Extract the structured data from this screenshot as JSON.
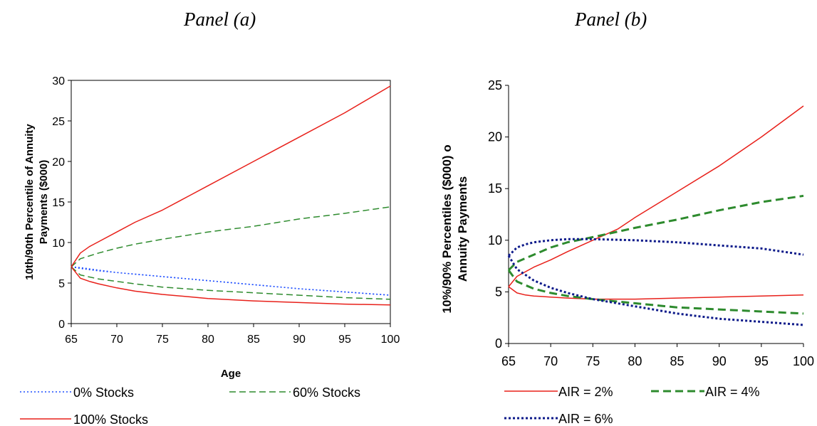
{
  "panels": {
    "a": {
      "title": "Panel (a)"
    },
    "b": {
      "title": "Panel (b)"
    }
  },
  "chart_data": [
    {
      "type": "line",
      "title": "Panel (a)",
      "xlabel": "Age",
      "ylabel": "10th/90th Percentile of Annuity Payments ($000)",
      "ylabel_lines": [
        "10th/90th Percentile of Annuity",
        "Payments ($000)"
      ],
      "xlim": [
        65,
        100
      ],
      "ylim": [
        0,
        30
      ],
      "xticks": [
        65,
        70,
        75,
        80,
        85,
        90,
        95,
        100
      ],
      "yticks": [
        0,
        5,
        10,
        15,
        20,
        25,
        30
      ],
      "grid": false,
      "legend_position": "bottom",
      "series": [
        {
          "name": "0% Stocks",
          "color": "#1f4fff",
          "dash": "dotted",
          "band": "upper",
          "x": [
            65,
            66,
            68,
            70,
            72,
            75,
            80,
            85,
            90,
            95,
            100
          ],
          "y": [
            7.0,
            6.9,
            6.6,
            6.3,
            6.1,
            5.8,
            5.3,
            4.8,
            4.3,
            3.9,
            3.5
          ]
        },
        {
          "name": "0% Stocks",
          "color": "#1f4fff",
          "dash": "dotted",
          "band": "lower",
          "x": [
            65,
            66,
            68,
            70,
            72,
            75,
            80,
            85,
            90,
            95,
            100
          ],
          "y": [
            7.0,
            6.8,
            6.5,
            6.3,
            6.1,
            5.8,
            5.3,
            4.8,
            4.3,
            3.9,
            3.5
          ]
        },
        {
          "name": "60% Stocks",
          "color": "#2e8b2e",
          "dash": "dashed",
          "band": "upper",
          "x": [
            65,
            66,
            68,
            70,
            72,
            75,
            80,
            85,
            90,
            95,
            100
          ],
          "y": [
            7.0,
            8.0,
            8.7,
            9.3,
            9.8,
            10.4,
            11.3,
            12.0,
            12.9,
            13.6,
            14.4
          ]
        },
        {
          "name": "60% Stocks",
          "color": "#2e8b2e",
          "dash": "dashed",
          "band": "lower",
          "x": [
            65,
            66,
            68,
            70,
            72,
            75,
            80,
            85,
            90,
            95,
            100
          ],
          "y": [
            7.0,
            6.0,
            5.5,
            5.2,
            4.9,
            4.5,
            4.1,
            3.8,
            3.5,
            3.2,
            3.0
          ]
        },
        {
          "name": "100% Stocks",
          "color": "#e8201a",
          "dash": "solid",
          "band": "upper",
          "x": [
            65,
            66,
            67,
            68,
            70,
            72,
            75,
            78,
            80,
            85,
            90,
            95,
            100
          ],
          "y": [
            7.0,
            8.7,
            9.5,
            10.1,
            11.3,
            12.5,
            14.0,
            15.8,
            17.0,
            20.0,
            23.0,
            26.0,
            29.3
          ]
        },
        {
          "name": "100% Stocks",
          "color": "#e8201a",
          "dash": "solid",
          "band": "lower",
          "x": [
            65,
            66,
            67,
            68,
            70,
            72,
            75,
            78,
            80,
            85,
            90,
            95,
            100
          ],
          "y": [
            7.0,
            5.6,
            5.2,
            4.9,
            4.4,
            4.0,
            3.6,
            3.3,
            3.1,
            2.8,
            2.6,
            2.4,
            2.3
          ]
        }
      ]
    },
    {
      "type": "line",
      "title": "Panel (b)",
      "xlabel": "",
      "ylabel": "10%/90% Percentiles ($000) of Annuity Payments",
      "ylabel_lines": [
        "10%/90% Percentiles ($000) o",
        "Annuity Payments"
      ],
      "xlim": [
        65,
        100
      ],
      "ylim": [
        0,
        25
      ],
      "xticks": [
        65,
        70,
        75,
        80,
        85,
        90,
        95,
        100
      ],
      "yticks": [
        0,
        5,
        10,
        15,
        20,
        25
      ],
      "grid": false,
      "legend_position": "bottom",
      "series": [
        {
          "name": "AIR = 2%",
          "color": "#e8201a",
          "dash": "solid",
          "band": "upper",
          "x": [
            65,
            66,
            68,
            70,
            72,
            75,
            78,
            80,
            85,
            90,
            95,
            100
          ],
          "y": [
            5.5,
            6.5,
            7.4,
            8.1,
            8.9,
            10.0,
            11.1,
            12.2,
            14.7,
            17.2,
            20.0,
            23.0
          ]
        },
        {
          "name": "AIR = 2%",
          "color": "#e8201a",
          "dash": "solid",
          "band": "lower",
          "x": [
            65,
            66,
            67,
            68,
            70,
            72,
            75,
            80,
            85,
            90,
            95,
            100
          ],
          "y": [
            5.5,
            4.9,
            4.7,
            4.6,
            4.5,
            4.4,
            4.3,
            4.3,
            4.4,
            4.5,
            4.6,
            4.7
          ]
        },
        {
          "name": "AIR = 4%",
          "color": "#2e8b2e",
          "dash": "dashed",
          "band": "upper",
          "x": [
            65,
            66,
            68,
            70,
            72,
            75,
            80,
            85,
            90,
            95,
            100
          ],
          "y": [
            7.1,
            7.9,
            8.6,
            9.3,
            9.8,
            10.3,
            11.2,
            12.0,
            12.9,
            13.7,
            14.3
          ]
        },
        {
          "name": "AIR = 4%",
          "color": "#2e8b2e",
          "dash": "dashed",
          "band": "lower",
          "x": [
            65,
            66,
            68,
            70,
            72,
            75,
            80,
            85,
            90,
            95,
            100
          ],
          "y": [
            7.1,
            6.0,
            5.3,
            4.9,
            4.6,
            4.3,
            3.9,
            3.5,
            3.3,
            3.1,
            2.9
          ]
        },
        {
          "name": "AIR = 6%",
          "color": "#0d1a8a",
          "dash": "dotted",
          "band": "upper",
          "x": [
            65,
            66,
            67,
            68,
            70,
            72,
            75,
            80,
            85,
            90,
            95,
            100
          ],
          "y": [
            8.5,
            9.3,
            9.6,
            9.8,
            10.0,
            10.1,
            10.1,
            10.0,
            9.8,
            9.5,
            9.2,
            8.6
          ]
        },
        {
          "name": "AIR = 6%",
          "color": "#0d1a8a",
          "dash": "dotted",
          "band": "lower",
          "x": [
            65,
            66,
            68,
            70,
            72,
            75,
            80,
            85,
            90,
            95,
            100
          ],
          "y": [
            8.5,
            7.2,
            6.1,
            5.4,
            4.9,
            4.3,
            3.6,
            2.9,
            2.4,
            2.1,
            1.8
          ]
        }
      ]
    }
  ],
  "legend_a": [
    "0% Stocks",
    "60% Stocks",
    "100% Stocks"
  ],
  "legend_b": [
    "AIR = 2%",
    "AIR = 4%",
    "AIR = 6%"
  ]
}
